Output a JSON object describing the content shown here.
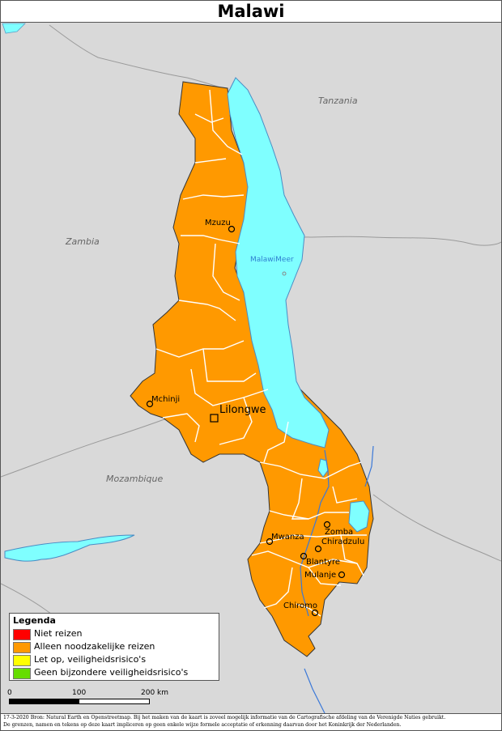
{
  "title": "Malawi",
  "countries": {
    "tanzania": "Tanzania",
    "zambia": "Zambia",
    "mozambique": "Mozambique"
  },
  "lake": "MalawiMeer",
  "cities": {
    "mzuzu": "Mzuzu",
    "mchinji": "Mchinji",
    "lilongwe": "Lilongwe",
    "zomba": "Zomba",
    "mwanza": "Mwanza",
    "chiradzulu": "Chiradzulu",
    "blantyre": "Blantyre",
    "mulanje": "Mulanje",
    "chiromo": "Chiromo"
  },
  "legend": {
    "title": "Legenda",
    "items": [
      {
        "label": "Niet reizen",
        "color": "#ff0000"
      },
      {
        "label": "Alleen noodzakelijke reizen",
        "color": "#ff9900"
      },
      {
        "label": "Let op, veiligheidsrisico's",
        "color": "#ffff00"
      },
      {
        "label": "Geen bijzondere veiligheidsrisico's",
        "color": "#66dd00"
      }
    ]
  },
  "scale": {
    "ticks": [
      "0",
      "100",
      "200 km"
    ]
  },
  "footer": {
    "line1": "17-3-2020 Bron: Natural Earth en Openstreetmap. Bij het maken van de kaart is zoveel mogelijk informatie van de Cartografische afdeling van de Verenigde Naties gebruikt.",
    "line2": "De grenzen, namen en tekens op deze kaart impliceren op geen enkele wijze formele acceptatie of erkenning daarvan door het Koninkrijk der Nederlanden."
  },
  "colors": {
    "background": "#d9d9d9",
    "country_fill": "#ff9900",
    "water": "#7fffff",
    "border": "#999999"
  }
}
